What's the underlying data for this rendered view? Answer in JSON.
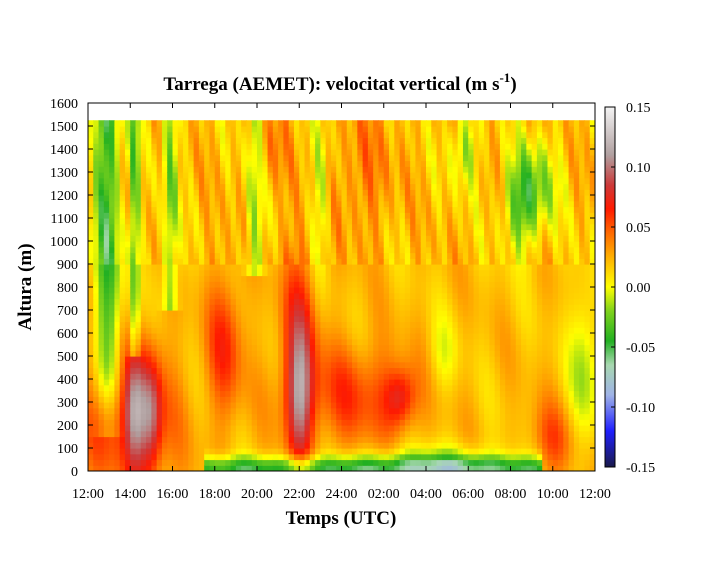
{
  "chart_data": {
    "type": "heatmap",
    "title": "Tarrega (AEMET): velocitat vertical (m s",
    "title_superscript": "-1",
    "title_suffix": ")",
    "xlabel": "Temps (UTC)",
    "ylabel": "Altura (m)",
    "x_tick_labels": [
      "12:00",
      "14:00",
      "16:00",
      "18:00",
      "20:00",
      "22:00",
      "24:00",
      "02:00",
      "04:00",
      "06:00",
      "08:00",
      "10:00",
      "12:00"
    ],
    "x_range_hours": [
      0,
      24
    ],
    "y_ticks": [
      0,
      100,
      200,
      300,
      400,
      500,
      600,
      700,
      800,
      900,
      1000,
      1100,
      1200,
      1300,
      1400,
      1500,
      1600
    ],
    "y_range": [
      0,
      1600
    ],
    "data_top_altitude": 1525,
    "colorbar": {
      "ticks": [
        "0.15",
        "0.10",
        "0.05",
        "0.00",
        "-0.05",
        "-0.10",
        "-0.15"
      ],
      "range": [
        -0.15,
        0.15
      ],
      "stops": [
        {
          "value": -0.15,
          "color": "#1a1a4a"
        },
        {
          "value": -0.12,
          "color": "#1f1fff"
        },
        {
          "value": -0.09,
          "color": "#9fb3e6"
        },
        {
          "value": -0.065,
          "color": "#a8d8b0"
        },
        {
          "value": -0.045,
          "color": "#22b022"
        },
        {
          "value": -0.02,
          "color": "#7fd21c"
        },
        {
          "value": 0.0,
          "color": "#ffff00"
        },
        {
          "value": 0.025,
          "color": "#ffb000"
        },
        {
          "value": 0.045,
          "color": "#ff6a00"
        },
        {
          "value": 0.065,
          "color": "#ff1a00"
        },
        {
          "value": 0.085,
          "color": "#cc3a3a"
        },
        {
          "value": 0.11,
          "color": "#b0a0a0"
        },
        {
          "value": 0.15,
          "color": "#f4f4f4"
        }
      ]
    },
    "features": [
      {
        "time_h": 2.2,
        "alt_top": 450,
        "value": 0.12
      },
      {
        "time_h": 3.0,
        "alt_top": 450,
        "value": 0.11
      },
      {
        "time_h": 10.0,
        "alt_top": 700,
        "value": 0.11
      },
      {
        "time_h": 14.8,
        "alt_top": 330,
        "value": 0.07
      },
      {
        "time_h": 6.5,
        "alt_top": 600,
        "value": 0.06
      },
      {
        "time_h": 0.8,
        "alt_top": 1525,
        "value": -0.05
      },
      {
        "time_h": 2.2,
        "alt_top": 1525,
        "value": -0.05
      },
      {
        "time_h": 9.0,
        "alt_top": 60,
        "value": -0.05
      },
      {
        "time_h": 16.5,
        "alt_top": 40,
        "value": -0.05
      },
      {
        "time_h": 20.5,
        "alt_top": 1200,
        "value": -0.04
      },
      {
        "time_h": 17.8,
        "alt_top": 1400,
        "value": -0.03
      }
    ]
  }
}
